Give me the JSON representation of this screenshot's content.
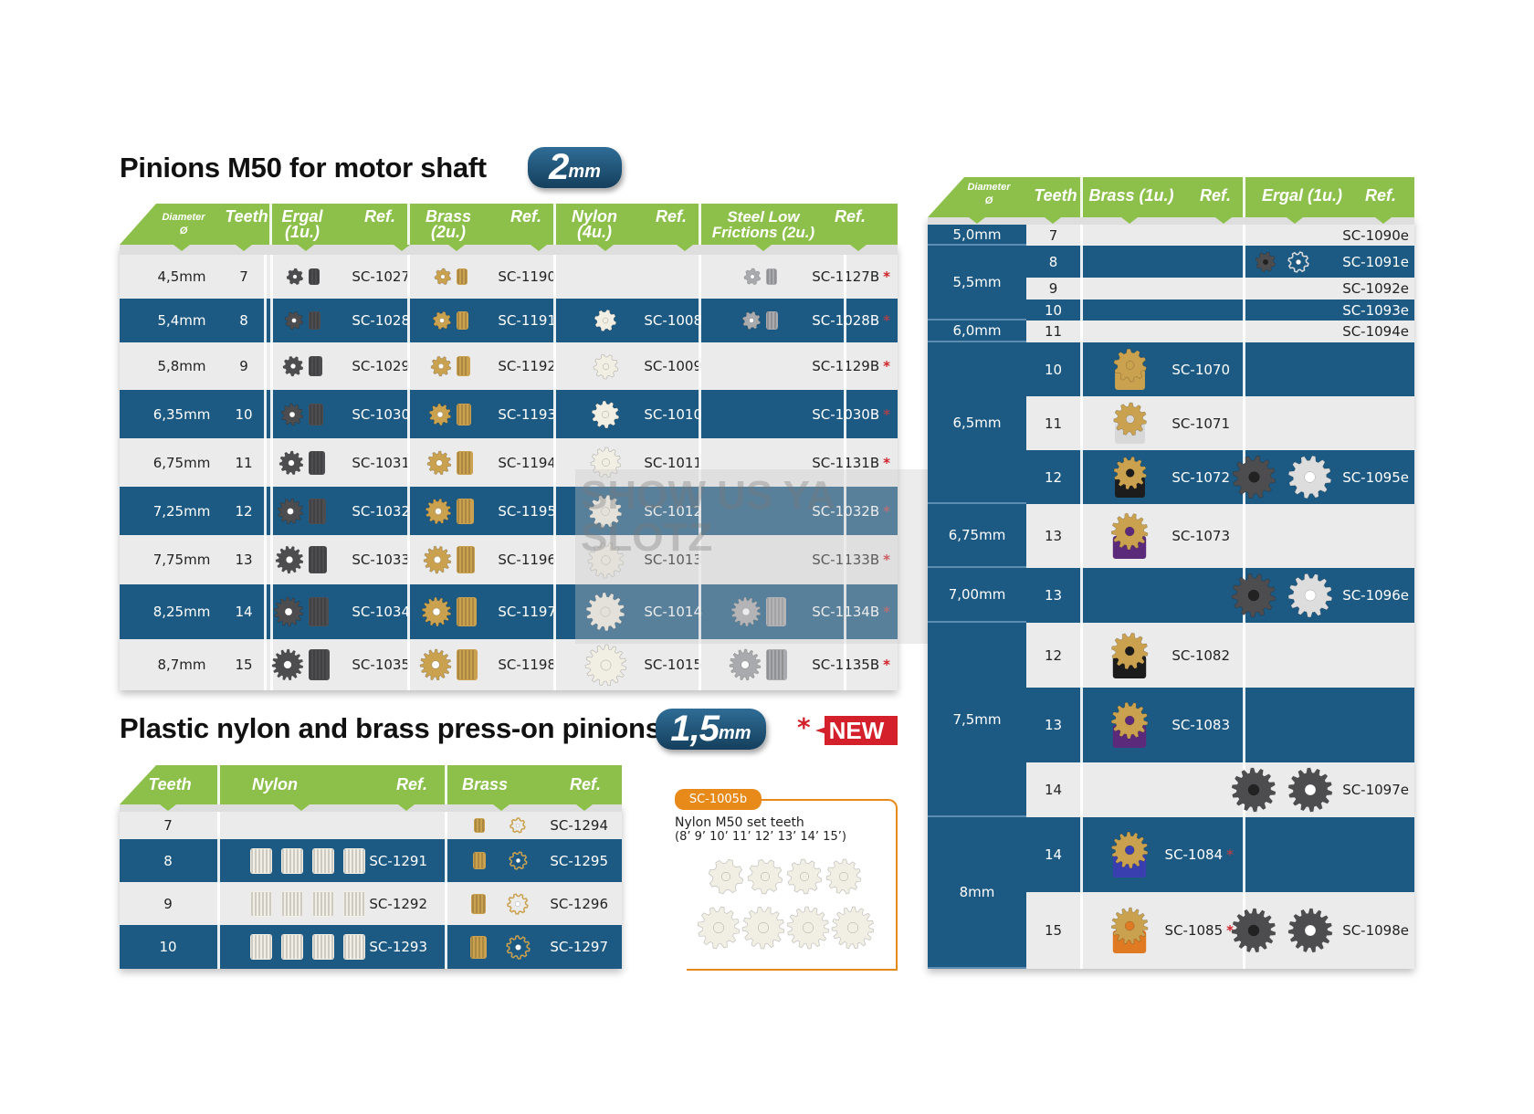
{
  "colors": {
    "blue": "#1d5a83",
    "light": "#ebebeb",
    "green": "#8cc04a",
    "accent_orange": "#e88a1a",
    "new_red": "#d3202a",
    "ergal": "#4d4d4f",
    "brass": "#c9a14f",
    "nylon": "#f1eee4",
    "steel": "#a9aaad"
  },
  "main_table": {
    "title": "Pinions M50 for motor shaft",
    "badge_number": "2",
    "badge_unit": "mm",
    "headers": {
      "diameter": "Diameter",
      "diameter_symbol": "Ø",
      "teeth": "Teeth",
      "ergal": "Ergal (1u.)",
      "ergal_ref": "Ref.",
      "brass": "Brass (2u.)",
      "brass_ref": "Ref.",
      "nylon": "Nylon (4u.)",
      "nylon_ref": "Ref.",
      "steel": "Steel Low Frictions (2u.)",
      "steel_ref": "Ref."
    },
    "rows": [
      {
        "diameter": "4,5mm",
        "teeth": "7",
        "ergal_ref": "SC-1027",
        "brass_ref": "SC-1190",
        "nylon_ref": "",
        "steel_ref": "SC-1127B",
        "steel_new": "*",
        "nylon_icon": "",
        "steel_icon": "steel-pinion-icon"
      },
      {
        "diameter": "5,4mm",
        "teeth": "8",
        "ergal_ref": "SC-1028",
        "brass_ref": "SC-1191",
        "nylon_ref": "SC-1008",
        "steel_ref": "SC-1028B",
        "steel_new": "*",
        "nylon_icon": "nylon-pinion-icon",
        "steel_icon": "steel-pinion-icon"
      },
      {
        "diameter": "5,8mm",
        "teeth": "9",
        "ergal_ref": "SC-1029",
        "brass_ref": "SC-1192",
        "nylon_ref": "SC-1009",
        "steel_ref": "SC-1129B",
        "steel_new": "*",
        "nylon_icon": "nylon-pinion-icon",
        "steel_icon": ""
      },
      {
        "diameter": "6,35mm",
        "teeth": "10",
        "ergal_ref": "SC-1030",
        "brass_ref": "SC-1193",
        "nylon_ref": "SC-1010",
        "steel_ref": "SC-1030B",
        "steel_new": "*",
        "nylon_icon": "nylon-pinion-icon",
        "steel_icon": ""
      },
      {
        "diameter": "6,75mm",
        "teeth": "11",
        "ergal_ref": "SC-1031",
        "brass_ref": "SC-1194",
        "nylon_ref": "SC-1011",
        "steel_ref": "SC-1131B",
        "steel_new": "*",
        "nylon_icon": "nylon-pinion-icon",
        "steel_icon": ""
      },
      {
        "diameter": "7,25mm",
        "teeth": "12",
        "ergal_ref": "SC-1032",
        "brass_ref": "SC-1195",
        "nylon_ref": "SC-1012",
        "steel_ref": "SC-1032B",
        "steel_new": "*",
        "nylon_icon": "nylon-pinion-icon",
        "steel_icon": ""
      },
      {
        "diameter": "7,75mm",
        "teeth": "13",
        "ergal_ref": "SC-1033",
        "brass_ref": "SC-1196",
        "nylon_ref": "SC-1013",
        "steel_ref": "SC-1133B",
        "steel_new": "*",
        "nylon_icon": "nylon-pinion-icon",
        "steel_icon": ""
      },
      {
        "diameter": "8,25mm",
        "teeth": "14",
        "ergal_ref": "SC-1034",
        "brass_ref": "SC-1197",
        "nylon_ref": "SC-1014",
        "steel_ref": "SC-1134B",
        "steel_new": "*",
        "nylon_icon": "nylon-pinion-icon",
        "steel_icon": "steel-pinion-icon"
      },
      {
        "diameter": "8,7mm",
        "teeth": "15",
        "ergal_ref": "SC-1035",
        "brass_ref": "SC-1198",
        "nylon_ref": "SC-1015",
        "steel_ref": "SC-1135B",
        "steel_new": "*",
        "nylon_icon": "nylon-pinion-icon",
        "steel_icon": "steel-pinion-icon"
      }
    ]
  },
  "press_on_table": {
    "title": "Plastic nylon and brass press-on pinions",
    "badge_number": "1,5",
    "badge_unit": "mm",
    "new_star": "*",
    "new_label": "NEW",
    "headers": {
      "teeth": "Teeth",
      "nylon": "Nylon",
      "nylon_ref": "Ref.",
      "brass": "Brass",
      "brass_ref": "Ref."
    },
    "rows": [
      {
        "teeth": "7",
        "nylon_ref": "",
        "brass_ref": "SC-1294",
        "nylon_count": 0
      },
      {
        "teeth": "8",
        "nylon_ref": "SC-1291",
        "brass_ref": "SC-1295",
        "nylon_count": 4
      },
      {
        "teeth": "9",
        "nylon_ref": "SC-1292",
        "brass_ref": "SC-1296",
        "nylon_count": 4
      },
      {
        "teeth": "10",
        "nylon_ref": "SC-1293",
        "brass_ref": "SC-1297",
        "nylon_count": 4
      }
    ]
  },
  "nylon_set": {
    "ref": "SC-1005b",
    "description": "Nylon M50 set teeth",
    "teeth_list": "(8’ 9’ 10’ 11’ 12’ 13’ 14’ 15’)",
    "teeth": [
      8,
      9,
      10,
      11,
      12,
      13,
      14,
      15
    ]
  },
  "right_table": {
    "headers": {
      "diameter": "Diameter",
      "diameter_symbol": "Ø",
      "teeth": "Teeth",
      "brass": "Brass (1u.)",
      "brass_ref": "Ref.",
      "ergal": "Ergal (1u.)",
      "ergal_ref": "Ref."
    },
    "diameters": [
      {
        "label": "5,0mm",
        "rows": [
          0
        ]
      },
      {
        "label": "5,5mm",
        "rows": [
          1,
          2,
          3
        ]
      },
      {
        "label": "6,0mm",
        "rows": [
          4
        ]
      },
      {
        "label": "6,5mm",
        "rows": [
          5,
          6,
          7
        ]
      },
      {
        "label": "6,75mm",
        "rows": [
          8
        ]
      },
      {
        "label": "7,00mm",
        "rows": [
          9
        ]
      },
      {
        "label": "7,5mm",
        "rows": [
          10,
          11,
          12
        ]
      },
      {
        "label": "8mm",
        "rows": [
          13,
          14
        ]
      }
    ],
    "rows": [
      {
        "teeth": "7",
        "brass_ref": "",
        "brass_new": "",
        "brass_base": "",
        "ergal_ref": "SC-1090e",
        "ergal_img": false
      },
      {
        "teeth": "8",
        "brass_ref": "",
        "brass_new": "",
        "brass_base": "",
        "ergal_ref": "SC-1091e",
        "ergal_img": true
      },
      {
        "teeth": "9",
        "brass_ref": "",
        "brass_new": "",
        "brass_base": "",
        "ergal_ref": "SC-1092e",
        "ergal_img": false
      },
      {
        "teeth": "10",
        "brass_ref": "",
        "brass_new": "",
        "brass_base": "",
        "ergal_ref": "SC-1093e",
        "ergal_img": false
      },
      {
        "teeth": "11",
        "brass_ref": "",
        "brass_new": "",
        "brass_base": "",
        "ergal_ref": "SC-1094e",
        "ergal_img": false
      },
      {
        "teeth": "10",
        "brass_ref": "SC-1070",
        "brass_new": "",
        "brass_base": "#c9a14f",
        "ergal_ref": "",
        "ergal_img": false
      },
      {
        "teeth": "11",
        "brass_ref": "SC-1071",
        "brass_new": "",
        "brass_base": "#d8d8d8",
        "ergal_ref": "",
        "ergal_img": false
      },
      {
        "teeth": "12",
        "brass_ref": "SC-1072",
        "brass_new": "",
        "brass_base": "#1c1c1c",
        "ergal_ref": "SC-1095e",
        "ergal_img": true
      },
      {
        "teeth": "13",
        "brass_ref": "SC-1073",
        "brass_new": "",
        "brass_base": "#5b2a7a",
        "ergal_ref": "",
        "ergal_img": false
      },
      {
        "teeth": "13",
        "brass_ref": "",
        "brass_new": "",
        "brass_base": "",
        "ergal_ref": "SC-1096e",
        "ergal_img": true
      },
      {
        "teeth": "12",
        "brass_ref": "SC-1082",
        "brass_new": "",
        "brass_base": "#1c1c1c",
        "ergal_ref": "",
        "ergal_img": false
      },
      {
        "teeth": "13",
        "brass_ref": "SC-1083",
        "brass_new": "",
        "brass_base": "#5b2a7a",
        "ergal_ref": "",
        "ergal_img": false
      },
      {
        "teeth": "14",
        "brass_ref": "",
        "brass_new": "",
        "brass_base": "",
        "ergal_ref": "SC-1097e",
        "ergal_img": true
      },
      {
        "teeth": "14",
        "brass_ref": "SC-1084",
        "brass_new": "*",
        "brass_base": "#3a3fb0",
        "ergal_ref": "",
        "ergal_img": false
      },
      {
        "teeth": "15",
        "brass_ref": "SC-1085",
        "brass_new": "*",
        "brass_base": "#e07a22",
        "ergal_ref": "SC-1098e",
        "ergal_img": true
      }
    ]
  },
  "watermark": {
    "line1": "SHOW US YA",
    "line2": "SLOTZ"
  }
}
